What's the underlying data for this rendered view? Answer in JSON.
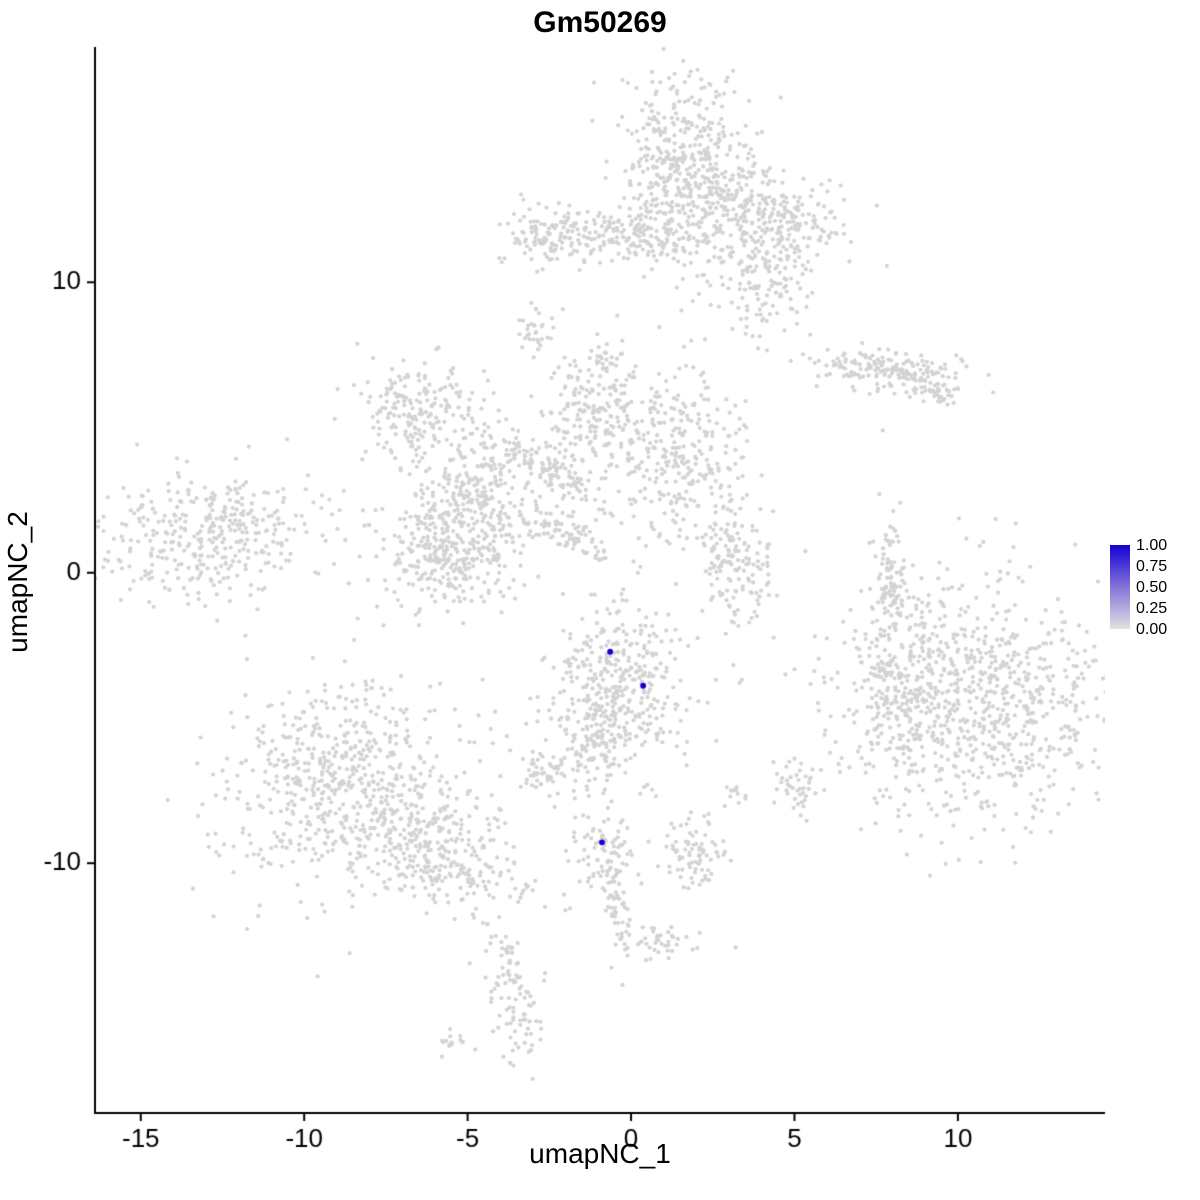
{
  "chart_data": {
    "type": "scatter",
    "title": "Gm50269",
    "xlabel": "umapNC_1",
    "ylabel": "umapNC_2",
    "xlim": [
      -16.4,
      14.5
    ],
    "ylim": [
      -18.6,
      18.1
    ],
    "xticks": [
      -15,
      -10,
      -5,
      0,
      5,
      10
    ],
    "yticks": [
      -10,
      0,
      10
    ],
    "grid": false,
    "legend_position": "right",
    "point_color": "#D3D3D3",
    "highlight_color": "#1400D2",
    "axis_color": "#000000",
    "tick_label_color": "#000000",
    "legend": {
      "ticks": [
        "1.00",
        "0.75",
        "0.50",
        "0.25",
        "0.00"
      ],
      "low_color": "#E2E2E2",
      "high_color": "#1400D2",
      "mid_color": "#7A68D8"
    },
    "highlighted_points": [
      {
        "x": -0.64,
        "y": -2.72,
        "value": 1.0
      },
      {
        "x": 0.37,
        "y": -3.89,
        "value": 1.0
      },
      {
        "x": -0.89,
        "y": -9.28,
        "value": 1.0
      }
    ],
    "clusters": [
      {
        "cx": 1.6,
        "cy": 13.7,
        "sx": 1.1,
        "sy": 1.6,
        "rot": 0,
        "n": 550
      },
      {
        "cx": 4.4,
        "cy": 12.2,
        "sx": 1.1,
        "sy": 0.8,
        "rot": -15,
        "n": 220
      },
      {
        "cx": 4.1,
        "cy": 10.1,
        "sx": 0.7,
        "sy": 1.0,
        "rot": 0,
        "n": 140
      },
      {
        "cx": 0.0,
        "cy": 11.5,
        "sx": 1.0,
        "sy": 0.45,
        "rot": 0,
        "n": 110
      },
      {
        "cx": -2.4,
        "cy": 11.6,
        "sx": 0.85,
        "sy": 0.5,
        "rot": 0,
        "n": 130
      },
      {
        "cx": -3.0,
        "cy": 8.3,
        "sx": 0.25,
        "sy": 0.45,
        "rot": 0,
        "n": 30
      },
      {
        "cx": 7.9,
        "cy": 7.0,
        "sx": 1.1,
        "sy": 0.35,
        "rot": -5,
        "n": 170
      },
      {
        "cx": 9.1,
        "cy": 6.4,
        "sx": 0.5,
        "sy": 0.3,
        "rot": -20,
        "n": 50
      },
      {
        "cx": -6.5,
        "cy": 5.6,
        "sx": 0.9,
        "sy": 0.85,
        "rot": 0,
        "n": 200
      },
      {
        "cx": -1.0,
        "cy": 5.8,
        "sx": 0.8,
        "sy": 1.1,
        "rot": 0,
        "n": 220
      },
      {
        "cx": 1.5,
        "cy": 4.0,
        "sx": 1.0,
        "sy": 1.4,
        "rot": 0,
        "n": 280
      },
      {
        "cx": -2.7,
        "cy": 3.7,
        "sx": 1.2,
        "sy": 0.35,
        "rot": -35,
        "n": 130
      },
      {
        "cx": -4.7,
        "cy": 2.7,
        "sx": 1.15,
        "sy": 0.95,
        "rot": 0,
        "n": 260
      },
      {
        "cx": -2.0,
        "cy": 1.3,
        "sx": 0.9,
        "sy": 0.25,
        "rot": -30,
        "n": 80
      },
      {
        "cx": -5.6,
        "cy": 0.6,
        "sx": 1.05,
        "sy": 0.9,
        "rot": 0,
        "n": 300
      },
      {
        "cx": -12.9,
        "cy": 1.3,
        "sx": 1.75,
        "sy": 1.1,
        "rot": 8,
        "n": 380
      },
      {
        "cx": 3.2,
        "cy": 0.2,
        "sx": 0.55,
        "sy": 1.0,
        "rot": 10,
        "n": 150
      },
      {
        "cx": 7.9,
        "cy": 0.0,
        "sx": 0.22,
        "sy": 1.0,
        "rot": 0,
        "n": 80
      },
      {
        "cx": -0.4,
        "cy": -4.0,
        "sx": 1.1,
        "sy": 1.5,
        "rot": 0,
        "n": 420
      },
      {
        "cx": -1.2,
        "cy": -6.2,
        "sx": 0.5,
        "sy": 0.5,
        "rot": 0,
        "n": 60
      },
      {
        "cx": 10.5,
        "cy": -4.4,
        "sx": 2.2,
        "sy": 2.2,
        "rot": 0,
        "n": 900
      },
      {
        "cx": 8.3,
        "cy": -3.8,
        "sx": 0.6,
        "sy": 1.3,
        "rot": 0,
        "n": 130
      },
      {
        "cx": -8.6,
        "cy": -7.4,
        "sx": 1.9,
        "sy": 1.9,
        "rot": 0,
        "n": 650
      },
      {
        "cx": -5.9,
        "cy": -9.7,
        "sx": 1.3,
        "sy": 0.8,
        "rot": -25,
        "n": 260
      },
      {
        "cx": -2.6,
        "cy": -6.8,
        "sx": 0.4,
        "sy": 0.4,
        "rot": 0,
        "n": 50
      },
      {
        "cx": 5.1,
        "cy": -7.4,
        "sx": 0.35,
        "sy": 0.45,
        "rot": 0,
        "n": 40
      },
      {
        "cx": 3.2,
        "cy": -7.6,
        "sx": 0.25,
        "sy": 0.2,
        "rot": 0,
        "n": 12
      },
      {
        "cx": -0.9,
        "cy": -9.6,
        "sx": 0.45,
        "sy": 0.8,
        "rot": 0,
        "n": 90
      },
      {
        "cx": -0.4,
        "cy": -11.8,
        "sx": 0.18,
        "sy": 0.9,
        "rot": 15,
        "n": 40
      },
      {
        "cx": 0.7,
        "cy": -12.8,
        "sx": 0.6,
        "sy": 0.3,
        "rot": 0,
        "n": 40
      },
      {
        "cx": 1.9,
        "cy": -9.7,
        "sx": 0.5,
        "sy": 0.6,
        "rot": 0,
        "n": 80
      },
      {
        "cx": -3.6,
        "cy": -14.6,
        "sx": 0.4,
        "sy": 1.2,
        "rot": 10,
        "n": 100
      },
      {
        "cx": -5.5,
        "cy": -16.2,
        "sx": 0.3,
        "sy": 0.2,
        "rot": 0,
        "n": 15
      }
    ],
    "singles": [
      [
        7.7,
        4.9
      ],
      [
        7.9,
        -2.3
      ],
      [
        2.9,
        -2.1
      ],
      [
        0.5,
        -7.3
      ],
      [
        3.2,
        -12.9
      ],
      [
        -0.6,
        -13.6
      ],
      [
        2.1,
        -12.4
      ],
      [
        5.0,
        -6.4
      ],
      [
        -4.4,
        -12.1
      ]
    ]
  }
}
